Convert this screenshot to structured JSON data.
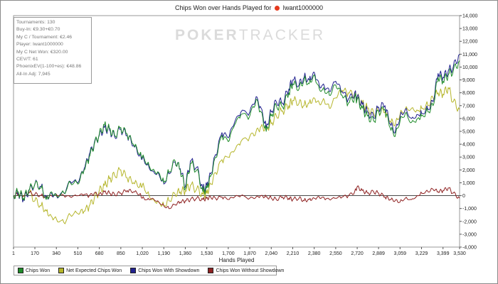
{
  "window": {
    "title_prefix": "Chips Won over Hands Played for",
    "player": "Iwant1000000"
  },
  "watermark": {
    "bold": "POKER",
    "light": "TRACKER"
  },
  "stats": [
    "Tournaments: 130",
    "Buy-In: €9.30+€0.70",
    "My C / Tournament: €2.46",
    "Player: Iwant1000000",
    "My C Net Won: €320.00",
    "CEV/T: 61",
    "PhoenixEV(1-100+es): €48.86",
    "All-In Adj: 7,945"
  ],
  "legend": [
    {
      "name": "Chips Won",
      "color": "#1f8c2a"
    },
    {
      "name": "Net Expected Chips Won",
      "color": "#b5b52a"
    },
    {
      "name": "Chips Won With Showdown",
      "color": "#22228f"
    },
    {
      "name": "Chips Won Without Showdown",
      "color": "#8f2222"
    }
  ],
  "chart_data": {
    "type": "line",
    "title": "Chips Won over Hands Played for Iwant1000000",
    "xlabel": "Hands Played",
    "ylabel": "",
    "xlim": [
      1,
      3530
    ],
    "ylim": [
      -4000,
      14000
    ],
    "x_ticks": [
      "1",
      "170",
      "340",
      "510",
      "680",
      "850",
      "1,020",
      "1,190",
      "1,360",
      "1,530",
      "1,700",
      "1,870",
      "2,040",
      "2,210",
      "2,380",
      "2,550",
      "2,720",
      "2,889",
      "3,059",
      "3,229",
      "3,399",
      "3,530"
    ],
    "x_tick_values": [
      1,
      170,
      340,
      510,
      680,
      850,
      1020,
      1190,
      1360,
      1530,
      1700,
      1870,
      2040,
      2210,
      2380,
      2550,
      2720,
      2889,
      3059,
      3229,
      3399,
      3530
    ],
    "y_ticks": [
      "-4,000",
      "-3,000",
      "-2,000",
      "-1,000",
      "0",
      "1,000",
      "2,000",
      "3,000",
      "4,000",
      "5,000",
      "6,000",
      "7,000",
      "8,000",
      "9,000",
      "10,000",
      "11,000",
      "12,000",
      "13,000",
      "14,000"
    ],
    "y_tick_values": [
      -4000,
      -3000,
      -2000,
      -1000,
      0,
      1000,
      2000,
      3000,
      4000,
      5000,
      6000,
      7000,
      8000,
      9000,
      10000,
      11000,
      12000,
      13000,
      14000
    ],
    "grid": false,
    "legend_position": "bottom-left",
    "x": [
      1,
      40,
      80,
      120,
      170,
      220,
      260,
      300,
      340,
      400,
      450,
      510,
      560,
      600,
      640,
      680,
      720,
      760,
      800,
      850,
      900,
      950,
      1000,
      1020,
      1060,
      1100,
      1150,
      1190,
      1230,
      1280,
      1320,
      1360,
      1400,
      1450,
      1500,
      1530,
      1560,
      1600,
      1650,
      1700,
      1750,
      1800,
      1870,
      1920,
      1960,
      2000,
      2040,
      2080,
      2130,
      2180,
      2210,
      2260,
      2300,
      2340,
      2380,
      2420,
      2460,
      2500,
      2550,
      2600,
      2650,
      2700,
      2720,
      2760,
      2800,
      2850,
      2889,
      2940,
      2980,
      3020,
      3059,
      3100,
      3150,
      3200,
      3229,
      3280,
      3320,
      3360,
      3399,
      3440,
      3480,
      3530
    ],
    "series": [
      {
        "name": "Chips Won",
        "color": "#1f8c2a",
        "values": [
          0,
          300,
          -200,
          400,
          900,
          600,
          -300,
          300,
          0,
          200,
          1000,
          900,
          2000,
          3000,
          4000,
          4800,
          5500,
          5200,
          4700,
          5300,
          4800,
          4000,
          3200,
          3000,
          2500,
          2000,
          1800,
          1000,
          1800,
          2700,
          2000,
          500,
          2500,
          2000,
          300,
          600,
          1500,
          3000,
          4700,
          4200,
          5500,
          6300,
          6200,
          7500,
          6500,
          5000,
          6200,
          7000,
          6900,
          8000,
          8700,
          8300,
          9000,
          8700,
          9400,
          8300,
          8200,
          7800,
          8600,
          7800,
          7200,
          7700,
          7500,
          6800,
          6200,
          5800,
          6600,
          6700,
          5300,
          4600,
          5800,
          6400,
          5700,
          6000,
          6200,
          6500,
          7000,
          9200,
          8900,
          9400,
          9700,
          10500
        ]
      },
      {
        "name": "Net Expected Chips Won",
        "color": "#b5b52a",
        "values": [
          0,
          200,
          -200,
          300,
          -400,
          -800,
          -1200,
          -1600,
          -1800,
          -2100,
          -1500,
          -1400,
          -1200,
          -800,
          -200,
          400,
          800,
          1300,
          1600,
          2000,
          1400,
          1000,
          700,
          800,
          200,
          -300,
          -500,
          -800,
          -400,
          100,
          300,
          400,
          800,
          500,
          100,
          200,
          900,
          1800,
          2800,
          3000,
          3500,
          4200,
          4600,
          5000,
          5400,
          5200,
          5600,
          6200,
          6600,
          7000,
          7400,
          7200,
          7000,
          7200,
          7600,
          7200,
          7400,
          6800,
          7600,
          8200,
          8000,
          7900,
          7700,
          7200,
          6800,
          6400,
          6600,
          6500,
          5800,
          5500,
          6300,
          6700,
          6800,
          6600,
          6800,
          7000,
          7600,
          8000,
          7900,
          8400,
          7300,
          6700
        ]
      },
      {
        "name": "Chips Won With Showdown",
        "color": "#22228f",
        "values": [
          0,
          200,
          -300,
          300,
          900,
          700,
          -200,
          200,
          0,
          200,
          1100,
          1000,
          2100,
          3200,
          4100,
          4700,
          5300,
          5100,
          4600,
          5200,
          4700,
          3900,
          3100,
          2900,
          2400,
          1900,
          1700,
          900,
          1700,
          2600,
          2100,
          700,
          2700,
          2200,
          500,
          800,
          1700,
          3200,
          4900,
          4500,
          5700,
          6500,
          6500,
          7700,
          6800,
          5300,
          6500,
          7300,
          7200,
          8300,
          9000,
          8600,
          9200,
          9000,
          9600,
          8600,
          8500,
          8100,
          8900,
          8100,
          7500,
          8000,
          7700,
          7100,
          6500,
          6100,
          6900,
          7000,
          5600,
          4900,
          6100,
          6700,
          6000,
          6300,
          6400,
          6700,
          7300,
          9500,
          9200,
          9700,
          10000,
          11000
        ]
      },
      {
        "name": "Chips Won Without Showdown",
        "color": "#8f2222",
        "values": [
          0,
          100,
          0,
          200,
          100,
          0,
          -100,
          0,
          100,
          0,
          -100,
          0,
          100,
          0,
          200,
          100,
          300,
          200,
          100,
          200,
          400,
          300,
          100,
          -200,
          -300,
          -200,
          -500,
          -800,
          -1000,
          -700,
          -500,
          -400,
          -300,
          -200,
          -300,
          -200,
          -100,
          -200,
          -100,
          -300,
          -100,
          0,
          -200,
          -100,
          0,
          -100,
          -200,
          -300,
          -100,
          -200,
          -300,
          -200,
          -400,
          -300,
          -200,
          -100,
          -200,
          -300,
          -200,
          -100,
          0,
          300,
          700,
          400,
          200,
          300,
          200,
          -100,
          -300,
          -400,
          -500,
          -200,
          -300,
          0,
          200,
          300,
          500,
          300,
          400,
          600,
          200,
          -200
        ]
      }
    ]
  }
}
